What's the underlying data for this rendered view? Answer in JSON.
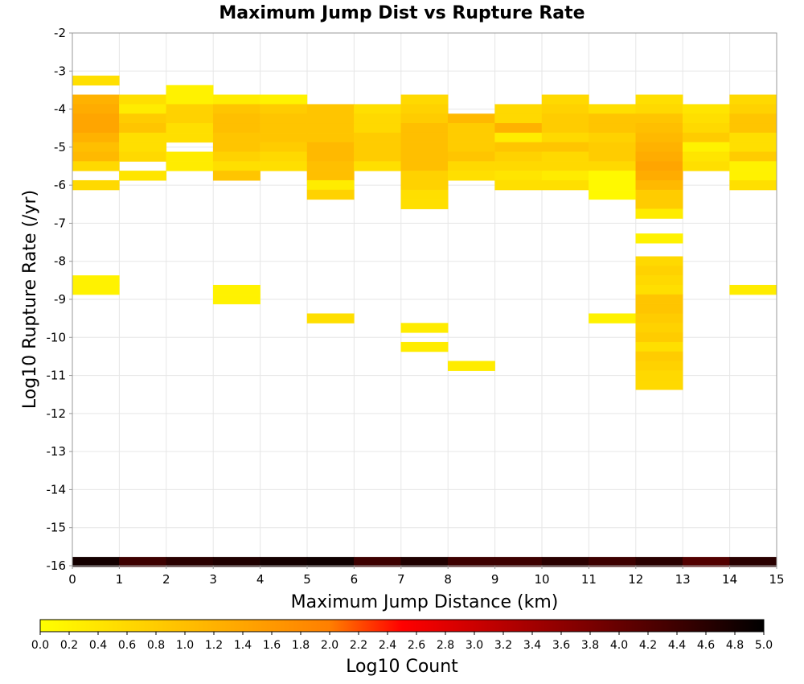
{
  "chart_data": {
    "type": "heatmap",
    "title": "Maximum Jump Dist vs Rupture Rate",
    "xlabel": "Maximum Jump Distance (km)",
    "ylabel": "Log10 Rupture Rate (/yr)",
    "xlim": [
      0,
      15
    ],
    "ylim": [
      -16,
      -2
    ],
    "x_ticks": [
      "0",
      "1",
      "2",
      "3",
      "4",
      "5",
      "6",
      "7",
      "8",
      "9",
      "10",
      "11",
      "12",
      "13",
      "14",
      "15"
    ],
    "y_ticks": [
      "-2",
      "-3",
      "-4",
      "-5",
      "-6",
      "-7",
      "-8",
      "-9",
      "-10",
      "-11",
      "-12",
      "-13",
      "-14",
      "-15",
      "-16"
    ],
    "colorbar": {
      "label": "Log10 Count",
      "min": 0,
      "max": 5,
      "ticks": [
        "0.0",
        "0.2",
        "0.4",
        "0.6",
        "0.8",
        "1.0",
        "1.2",
        "1.4",
        "1.6",
        "1.8",
        "2.0",
        "2.2",
        "2.4",
        "2.6",
        "2.8",
        "3.0",
        "3.2",
        "3.4",
        "3.6",
        "3.8",
        "4.0",
        "4.2",
        "4.4",
        "4.6",
        "4.8",
        "5.0"
      ]
    },
    "grid": true,
    "bin_height": 0.25,
    "cells": [
      {
        "x": 0,
        "y": -3.25,
        "v": 0.5
      },
      {
        "x": 0,
        "y": -3.75,
        "v": 1.2
      },
      {
        "x": 0,
        "y": -4.0,
        "v": 1.3
      },
      {
        "x": 0,
        "y": -4.25,
        "v": 1.4
      },
      {
        "x": 0,
        "y": -4.5,
        "v": 1.4
      },
      {
        "x": 0,
        "y": -4.75,
        "v": 1.2
      },
      {
        "x": 0,
        "y": -5.0,
        "v": 1.0
      },
      {
        "x": 0,
        "y": -5.25,
        "v": 1.1
      },
      {
        "x": 0,
        "y": -5.5,
        "v": 0.6
      },
      {
        "x": 0,
        "y": -6.0,
        "v": 0.6
      },
      {
        "x": 0,
        "y": -8.5,
        "v": 0.2
      },
      {
        "x": 0,
        "y": -8.75,
        "v": 0.2
      },
      {
        "x": 1,
        "y": -3.75,
        "v": 0.5
      },
      {
        "x": 1,
        "y": -4.0,
        "v": 0.3
      },
      {
        "x": 1,
        "y": -4.25,
        "v": 0.8
      },
      {
        "x": 1,
        "y": -4.5,
        "v": 0.9
      },
      {
        "x": 1,
        "y": -4.75,
        "v": 0.5
      },
      {
        "x": 1,
        "y": -5.0,
        "v": 0.5
      },
      {
        "x": 1,
        "y": -5.25,
        "v": 0.6
      },
      {
        "x": 1,
        "y": -5.75,
        "v": 0.4
      },
      {
        "x": 2,
        "y": -3.5,
        "v": 0.2
      },
      {
        "x": 2,
        "y": -3.75,
        "v": 0.2
      },
      {
        "x": 2,
        "y": -4.0,
        "v": 0.7
      },
      {
        "x": 2,
        "y": -4.25,
        "v": 0.7
      },
      {
        "x": 2,
        "y": -4.5,
        "v": 0.5
      },
      {
        "x": 2,
        "y": -4.75,
        "v": 0.5
      },
      {
        "x": 2,
        "y": -5.25,
        "v": 0.3
      },
      {
        "x": 2,
        "y": -5.5,
        "v": 0.3
      },
      {
        "x": 3,
        "y": -3.75,
        "v": 0.3
      },
      {
        "x": 3,
        "y": -4.0,
        "v": 0.9
      },
      {
        "x": 3,
        "y": -4.25,
        "v": 1.0
      },
      {
        "x": 3,
        "y": -4.5,
        "v": 1.0
      },
      {
        "x": 3,
        "y": -4.75,
        "v": 0.9
      },
      {
        "x": 3,
        "y": -5.0,
        "v": 0.9
      },
      {
        "x": 3,
        "y": -5.25,
        "v": 0.7
      },
      {
        "x": 3,
        "y": -5.5,
        "v": 0.5
      },
      {
        "x": 3,
        "y": -5.75,
        "v": 0.9
      },
      {
        "x": 3,
        "y": -8.75,
        "v": 0.2
      },
      {
        "x": 3,
        "y": -9.0,
        "v": 0.2
      },
      {
        "x": 4,
        "y": -3.75,
        "v": 0.2
      },
      {
        "x": 4,
        "y": -4.0,
        "v": 0.8
      },
      {
        "x": 4,
        "y": -4.25,
        "v": 0.9
      },
      {
        "x": 4,
        "y": -4.5,
        "v": 0.9
      },
      {
        "x": 4,
        "y": -4.75,
        "v": 0.9
      },
      {
        "x": 4,
        "y": -5.0,
        "v": 0.8
      },
      {
        "x": 4,
        "y": -5.25,
        "v": 0.6
      },
      {
        "x": 4,
        "y": -5.5,
        "v": 0.5
      },
      {
        "x": 5,
        "y": -4.0,
        "v": 0.9
      },
      {
        "x": 5,
        "y": -4.25,
        "v": 0.9
      },
      {
        "x": 5,
        "y": -4.5,
        "v": 0.9
      },
      {
        "x": 5,
        "y": -4.75,
        "v": 0.9
      },
      {
        "x": 5,
        "y": -5.0,
        "v": 1.1
      },
      {
        "x": 5,
        "y": -5.25,
        "v": 1.1
      },
      {
        "x": 5,
        "y": -5.5,
        "v": 1.0
      },
      {
        "x": 5,
        "y": -5.75,
        "v": 1.0
      },
      {
        "x": 5,
        "y": -6.0,
        "v": 0.3
      },
      {
        "x": 5,
        "y": -6.25,
        "v": 0.7
      },
      {
        "x": 5,
        "y": -9.5,
        "v": 0.5
      },
      {
        "x": 6,
        "y": -4.0,
        "v": 0.5
      },
      {
        "x": 6,
        "y": -4.25,
        "v": 0.6
      },
      {
        "x": 6,
        "y": -4.5,
        "v": 0.6
      },
      {
        "x": 6,
        "y": -4.75,
        "v": 0.8
      },
      {
        "x": 6,
        "y": -5.0,
        "v": 0.8
      },
      {
        "x": 6,
        "y": -5.25,
        "v": 0.8
      },
      {
        "x": 6,
        "y": -5.5,
        "v": 0.5
      },
      {
        "x": 7,
        "y": -3.75,
        "v": 0.6
      },
      {
        "x": 7,
        "y": -4.0,
        "v": 0.7
      },
      {
        "x": 7,
        "y": -4.25,
        "v": 0.8
      },
      {
        "x": 7,
        "y": -4.5,
        "v": 1.0
      },
      {
        "x": 7,
        "y": -4.75,
        "v": 1.0
      },
      {
        "x": 7,
        "y": -5.0,
        "v": 1.0
      },
      {
        "x": 7,
        "y": -5.25,
        "v": 1.0
      },
      {
        "x": 7,
        "y": -5.5,
        "v": 1.0
      },
      {
        "x": 7,
        "y": -5.75,
        "v": 0.7
      },
      {
        "x": 7,
        "y": -6.0,
        "v": 0.7
      },
      {
        "x": 7,
        "y": -6.25,
        "v": 0.5
      },
      {
        "x": 7,
        "y": -6.5,
        "v": 0.5
      },
      {
        "x": 7,
        "y": -9.75,
        "v": 0.3
      },
      {
        "x": 7,
        "y": -10.25,
        "v": 0.3
      },
      {
        "x": 8,
        "y": -4.25,
        "v": 1.1
      },
      {
        "x": 8,
        "y": -4.5,
        "v": 0.8
      },
      {
        "x": 8,
        "y": -4.75,
        "v": 0.8
      },
      {
        "x": 8,
        "y": -5.0,
        "v": 0.8
      },
      {
        "x": 8,
        "y": -5.25,
        "v": 0.9
      },
      {
        "x": 8,
        "y": -5.5,
        "v": 0.6
      },
      {
        "x": 8,
        "y": -5.75,
        "v": 0.5
      },
      {
        "x": 8,
        "y": -10.75,
        "v": 0.3
      },
      {
        "x": 9,
        "y": -4.0,
        "v": 0.6
      },
      {
        "x": 9,
        "y": -4.25,
        "v": 0.6
      },
      {
        "x": 9,
        "y": -4.5,
        "v": 1.2
      },
      {
        "x": 9,
        "y": -4.75,
        "v": 0.3
      },
      {
        "x": 9,
        "y": -5.0,
        "v": 0.9
      },
      {
        "x": 9,
        "y": -5.25,
        "v": 0.7
      },
      {
        "x": 9,
        "y": -5.5,
        "v": 0.6
      },
      {
        "x": 9,
        "y": -5.75,
        "v": 0.4
      },
      {
        "x": 9,
        "y": -6.0,
        "v": 0.5
      },
      {
        "x": 10,
        "y": -3.75,
        "v": 0.6
      },
      {
        "x": 10,
        "y": -4.0,
        "v": 0.7
      },
      {
        "x": 10,
        "y": -4.25,
        "v": 0.8
      },
      {
        "x": 10,
        "y": -4.5,
        "v": 0.8
      },
      {
        "x": 10,
        "y": -4.75,
        "v": 0.6
      },
      {
        "x": 10,
        "y": -5.0,
        "v": 0.9
      },
      {
        "x": 10,
        "y": -5.25,
        "v": 0.6
      },
      {
        "x": 10,
        "y": -5.5,
        "v": 0.6
      },
      {
        "x": 10,
        "y": -5.75,
        "v": 0.3
      },
      {
        "x": 10,
        "y": -6.0,
        "v": 0.5
      },
      {
        "x": 11,
        "y": -4.0,
        "v": 0.5
      },
      {
        "x": 11,
        "y": -4.25,
        "v": 0.9
      },
      {
        "x": 11,
        "y": -4.5,
        "v": 0.9
      },
      {
        "x": 11,
        "y": -4.75,
        "v": 0.7
      },
      {
        "x": 11,
        "y": -5.0,
        "v": 0.8
      },
      {
        "x": 11,
        "y": -5.25,
        "v": 0.8
      },
      {
        "x": 11,
        "y": -5.5,
        "v": 0.6
      },
      {
        "x": 11,
        "y": -5.75,
        "v": 0.1
      },
      {
        "x": 11,
        "y": -6.0,
        "v": 0.1
      },
      {
        "x": 11,
        "y": -6.25,
        "v": 0.1
      },
      {
        "x": 11,
        "y": -9.5,
        "v": 0.2
      },
      {
        "x": 12,
        "y": -3.75,
        "v": 0.5
      },
      {
        "x": 12,
        "y": -4.0,
        "v": 0.6
      },
      {
        "x": 12,
        "y": -4.25,
        "v": 0.9
      },
      {
        "x": 12,
        "y": -4.5,
        "v": 1.0
      },
      {
        "x": 12,
        "y": -4.75,
        "v": 1.1
      },
      {
        "x": 12,
        "y": -5.0,
        "v": 1.2
      },
      {
        "x": 12,
        "y": -5.25,
        "v": 1.3
      },
      {
        "x": 12,
        "y": -5.5,
        "v": 1.4
      },
      {
        "x": 12,
        "y": -5.75,
        "v": 1.3
      },
      {
        "x": 12,
        "y": -6.0,
        "v": 1.1
      },
      {
        "x": 12,
        "y": -6.25,
        "v": 0.8
      },
      {
        "x": 12,
        "y": -6.5,
        "v": 0.8
      },
      {
        "x": 12,
        "y": -6.75,
        "v": 0.3
      },
      {
        "x": 12,
        "y": -7.4,
        "v": 0.2
      },
      {
        "x": 12,
        "y": -8.0,
        "v": 0.6
      },
      {
        "x": 12,
        "y": -8.25,
        "v": 0.7
      },
      {
        "x": 12,
        "y": -8.5,
        "v": 0.6
      },
      {
        "x": 12,
        "y": -8.75,
        "v": 0.5
      },
      {
        "x": 12,
        "y": -9.0,
        "v": 0.9
      },
      {
        "x": 12,
        "y": -9.25,
        "v": 0.9
      },
      {
        "x": 12,
        "y": -9.5,
        "v": 0.8
      },
      {
        "x": 12,
        "y": -9.75,
        "v": 0.7
      },
      {
        "x": 12,
        "y": -10.0,
        "v": 0.8
      },
      {
        "x": 12,
        "y": -10.25,
        "v": 0.5
      },
      {
        "x": 12,
        "y": -10.5,
        "v": 0.8
      },
      {
        "x": 12,
        "y": -10.75,
        "v": 0.7
      },
      {
        "x": 12,
        "y": -11.0,
        "v": 0.6
      },
      {
        "x": 12,
        "y": -11.25,
        "v": 0.6
      },
      {
        "x": 13,
        "y": -4.0,
        "v": 0.4
      },
      {
        "x": 13,
        "y": -4.25,
        "v": 0.5
      },
      {
        "x": 13,
        "y": -4.5,
        "v": 0.6
      },
      {
        "x": 13,
        "y": -4.75,
        "v": 0.8
      },
      {
        "x": 13,
        "y": -5.0,
        "v": 0.2
      },
      {
        "x": 13,
        "y": -5.25,
        "v": 0.4
      },
      {
        "x": 13,
        "y": -5.5,
        "v": 0.5
      },
      {
        "x": 14,
        "y": -3.75,
        "v": 0.6
      },
      {
        "x": 14,
        "y": -4.0,
        "v": 0.7
      },
      {
        "x": 14,
        "y": -4.25,
        "v": 0.9
      },
      {
        "x": 14,
        "y": -4.5,
        "v": 0.9
      },
      {
        "x": 14,
        "y": -4.75,
        "v": 0.5
      },
      {
        "x": 14,
        "y": -5.0,
        "v": 0.5
      },
      {
        "x": 14,
        "y": -5.25,
        "v": 0.8
      },
      {
        "x": 14,
        "y": -5.5,
        "v": 0.2
      },
      {
        "x": 14,
        "y": -5.75,
        "v": 0.2
      },
      {
        "x": 14,
        "y": -6.0,
        "v": 0.5
      },
      {
        "x": 14,
        "y": -8.75,
        "v": 0.3
      },
      {
        "x": 0,
        "y": -15.9,
        "v": 4.8
      },
      {
        "x": 1,
        "y": -15.9,
        "v": 4.4
      },
      {
        "x": 2,
        "y": -15.9,
        "v": 4.6
      },
      {
        "x": 3,
        "y": -15.9,
        "v": 4.7
      },
      {
        "x": 4,
        "y": -15.9,
        "v": 4.8
      },
      {
        "x": 5,
        "y": -15.9,
        "v": 4.85
      },
      {
        "x": 6,
        "y": -15.9,
        "v": 4.4
      },
      {
        "x": 7,
        "y": -15.9,
        "v": 4.7
      },
      {
        "x": 8,
        "y": -15.9,
        "v": 4.4
      },
      {
        "x": 9,
        "y": -15.9,
        "v": 4.4
      },
      {
        "x": 10,
        "y": -15.9,
        "v": 4.6
      },
      {
        "x": 11,
        "y": -15.9,
        "v": 4.4
      },
      {
        "x": 12,
        "y": -15.9,
        "v": 4.6
      },
      {
        "x": 13,
        "y": -15.9,
        "v": 4.2
      },
      {
        "x": 14,
        "y": -15.9,
        "v": 4.6
      }
    ]
  }
}
